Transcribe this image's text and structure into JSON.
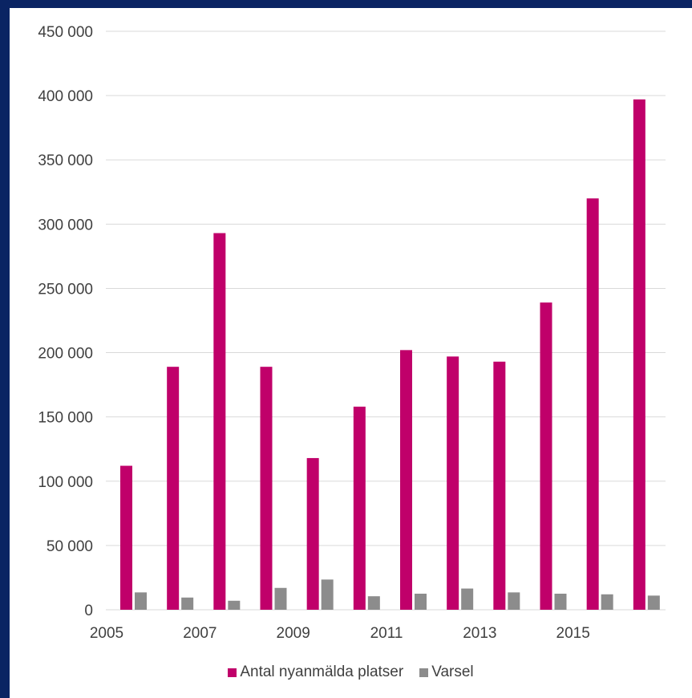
{
  "chart_data": {
    "type": "bar",
    "categories": [
      "2005",
      "2006",
      "2007",
      "2008",
      "2009",
      "2010",
      "2011",
      "2012",
      "2013",
      "2014",
      "2015",
      "2016"
    ],
    "x_tick_labels": [
      "2005",
      "",
      "2007",
      "",
      "2009",
      "",
      "2011",
      "",
      "2013",
      "",
      "2015",
      ""
    ],
    "series": [
      {
        "name": "Antal nyanmälda platser",
        "color": "#c0006a",
        "values": [
          112000,
          189000,
          293000,
          189000,
          118000,
          158000,
          202000,
          197000,
          193000,
          239000,
          320000,
          397000
        ]
      },
      {
        "name": "Varsel",
        "color": "#8c8c8c",
        "values": [
          13500,
          9500,
          7000,
          17000,
          23500,
          10500,
          12500,
          16500,
          13500,
          12500,
          12000,
          11000
        ]
      }
    ],
    "ylim": [
      0,
      450000
    ],
    "y_ticks": [
      0,
      50000,
      100000,
      150000,
      200000,
      250000,
      300000,
      350000,
      400000,
      450000
    ],
    "y_tick_labels": [
      "0",
      "50 000",
      "100 000",
      "150 000",
      "200 000",
      "250 000",
      "300 000",
      "350 000",
      "400 000",
      "450 000"
    ],
    "grid": true,
    "legend_position": "bottom",
    "title": "",
    "xlabel": "",
    "ylabel": ""
  },
  "colors": {
    "background_frame": "#0a2463",
    "grid": "#d9d9d9",
    "text": "#404040"
  }
}
